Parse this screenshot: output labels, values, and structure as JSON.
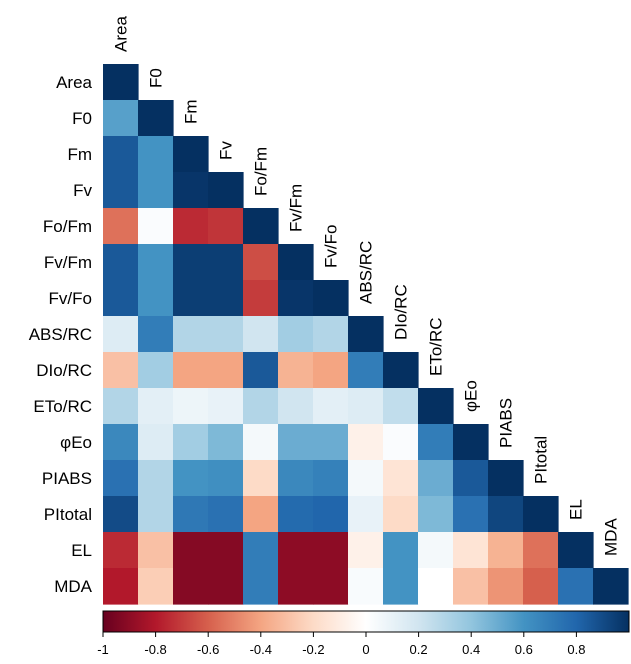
{
  "chart_data": {
    "type": "heatmap",
    "variables": [
      "Area",
      "F0",
      "Fm",
      "Fv",
      "Fo/Fm",
      "Fv/Fm",
      "Fv/Fo",
      "ABS/RC",
      "DIo/RC",
      "ETo/RC",
      "φEo",
      "PIABS",
      "PItotal",
      "EL",
      "MDA"
    ],
    "row_labels": [
      "Area",
      "F0",
      "Fm",
      "Fv",
      "Fo/Fm",
      "Fv/Fm",
      "Fv/Fo",
      "ABS/RC",
      "DIo/RC",
      "ETo/RC",
      "φEo",
      "PIABS",
      "PItotal",
      "EL",
      "MDA"
    ],
    "column_labels": [
      "Area",
      "F0",
      "Fm",
      "Fv",
      "Fo/Fm",
      "Fv/Fm",
      "Fv/Fo",
      "ABS/RC",
      "DIo/RC",
      "ETo/RC",
      "φEo",
      "PIABS",
      "PItotal",
      "EL",
      "MDA"
    ],
    "matrix": [
      [
        1
      ],
      [
        0.55,
        1
      ],
      [
        0.85,
        0.6,
        1
      ],
      [
        0.85,
        0.6,
        0.98,
        1
      ],
      [
        -0.55,
        0.02,
        -0.75,
        -0.72,
        1
      ],
      [
        0.85,
        0.6,
        0.95,
        0.95,
        -0.65,
        1
      ],
      [
        0.85,
        0.6,
        0.95,
        0.95,
        -0.7,
        0.98,
        1
      ],
      [
        0.15,
        0.7,
        0.3,
        0.3,
        0.2,
        0.35,
        0.3,
        1
      ],
      [
        -0.3,
        0.35,
        -0.4,
        -0.4,
        0.85,
        -0.35,
        -0.4,
        0.7,
        1
      ],
      [
        0.3,
        0.12,
        0.08,
        0.1,
        0.3,
        0.2,
        0.12,
        0.15,
        0.25,
        1
      ],
      [
        0.65,
        0.15,
        0.35,
        0.45,
        0.05,
        0.5,
        0.5,
        -0.08,
        0.02,
        0.7,
        1
      ],
      [
        0.75,
        0.3,
        0.6,
        0.62,
        -0.2,
        0.65,
        0.68,
        0.05,
        -0.15,
        0.5,
        0.85,
        1
      ],
      [
        0.9,
        0.3,
        0.72,
        0.75,
        -0.4,
        0.78,
        0.8,
        0.1,
        -0.2,
        0.45,
        0.75,
        0.92,
        1
      ],
      [
        -0.75,
        -0.3,
        -0.92,
        -0.92,
        0.7,
        -0.9,
        -0.9,
        -0.08,
        0.6,
        0.05,
        -0.15,
        -0.35,
        -0.55,
        1
      ],
      [
        -0.8,
        -0.25,
        -0.92,
        -0.92,
        0.7,
        -0.9,
        -0.9,
        0.03,
        0.6,
        0.0,
        -0.3,
        -0.45,
        -0.6,
        0.75,
        1
      ]
    ],
    "colorbar": {
      "min": -1,
      "max": 1,
      "ticks": [
        "-1",
        "-0.8",
        "-0.6",
        "-0.4",
        "-0.2",
        "0",
        "0.2",
        "0.4",
        "0.6",
        "0.8"
      ],
      "tick_values": [
        -1,
        -0.8,
        -0.6,
        -0.4,
        -0.2,
        0,
        0.2,
        0.4,
        0.6,
        0.8
      ]
    },
    "colors": {
      "negative": "#67001f",
      "neutral": "#ffffff",
      "positive": "#053061"
    },
    "layout": "lower-triangle with diagonal; column labels rotated along the diagonal",
    "title": "",
    "xlabel": "",
    "ylabel": ""
  }
}
